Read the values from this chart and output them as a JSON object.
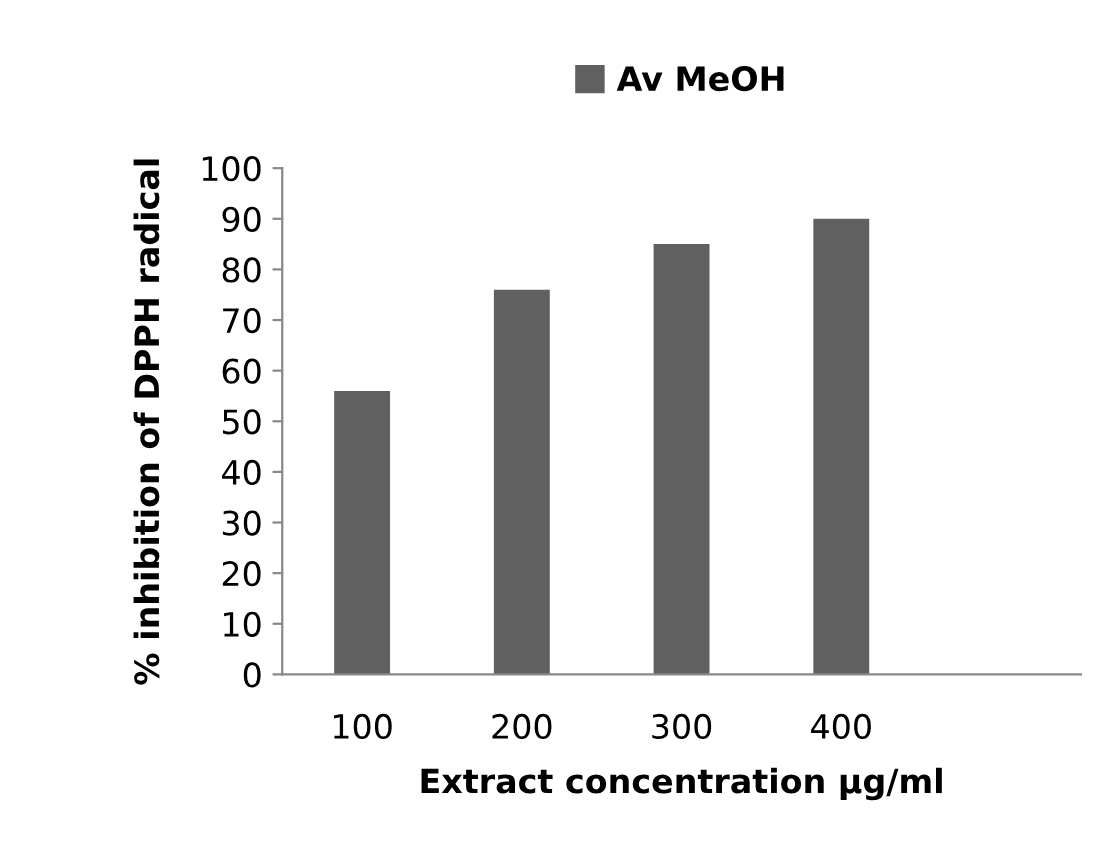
{
  "chart_data": {
    "type": "bar",
    "xlabel": "Extract concentration µg/ml",
    "ylabel": "% inhibition of DPPH radical",
    "categories": [
      "100",
      "200",
      "300",
      "400",
      null
    ],
    "series": [
      {
        "name": "Av MeOH",
        "color": "#606060",
        "values": [
          56,
          76,
          85,
          90,
          null
        ]
      }
    ],
    "ylim": [
      0,
      100
    ],
    "yticks": [
      0,
      10,
      20,
      30,
      40,
      50,
      60,
      70,
      80,
      90,
      100
    ],
    "grid": false,
    "legend": "top"
  }
}
